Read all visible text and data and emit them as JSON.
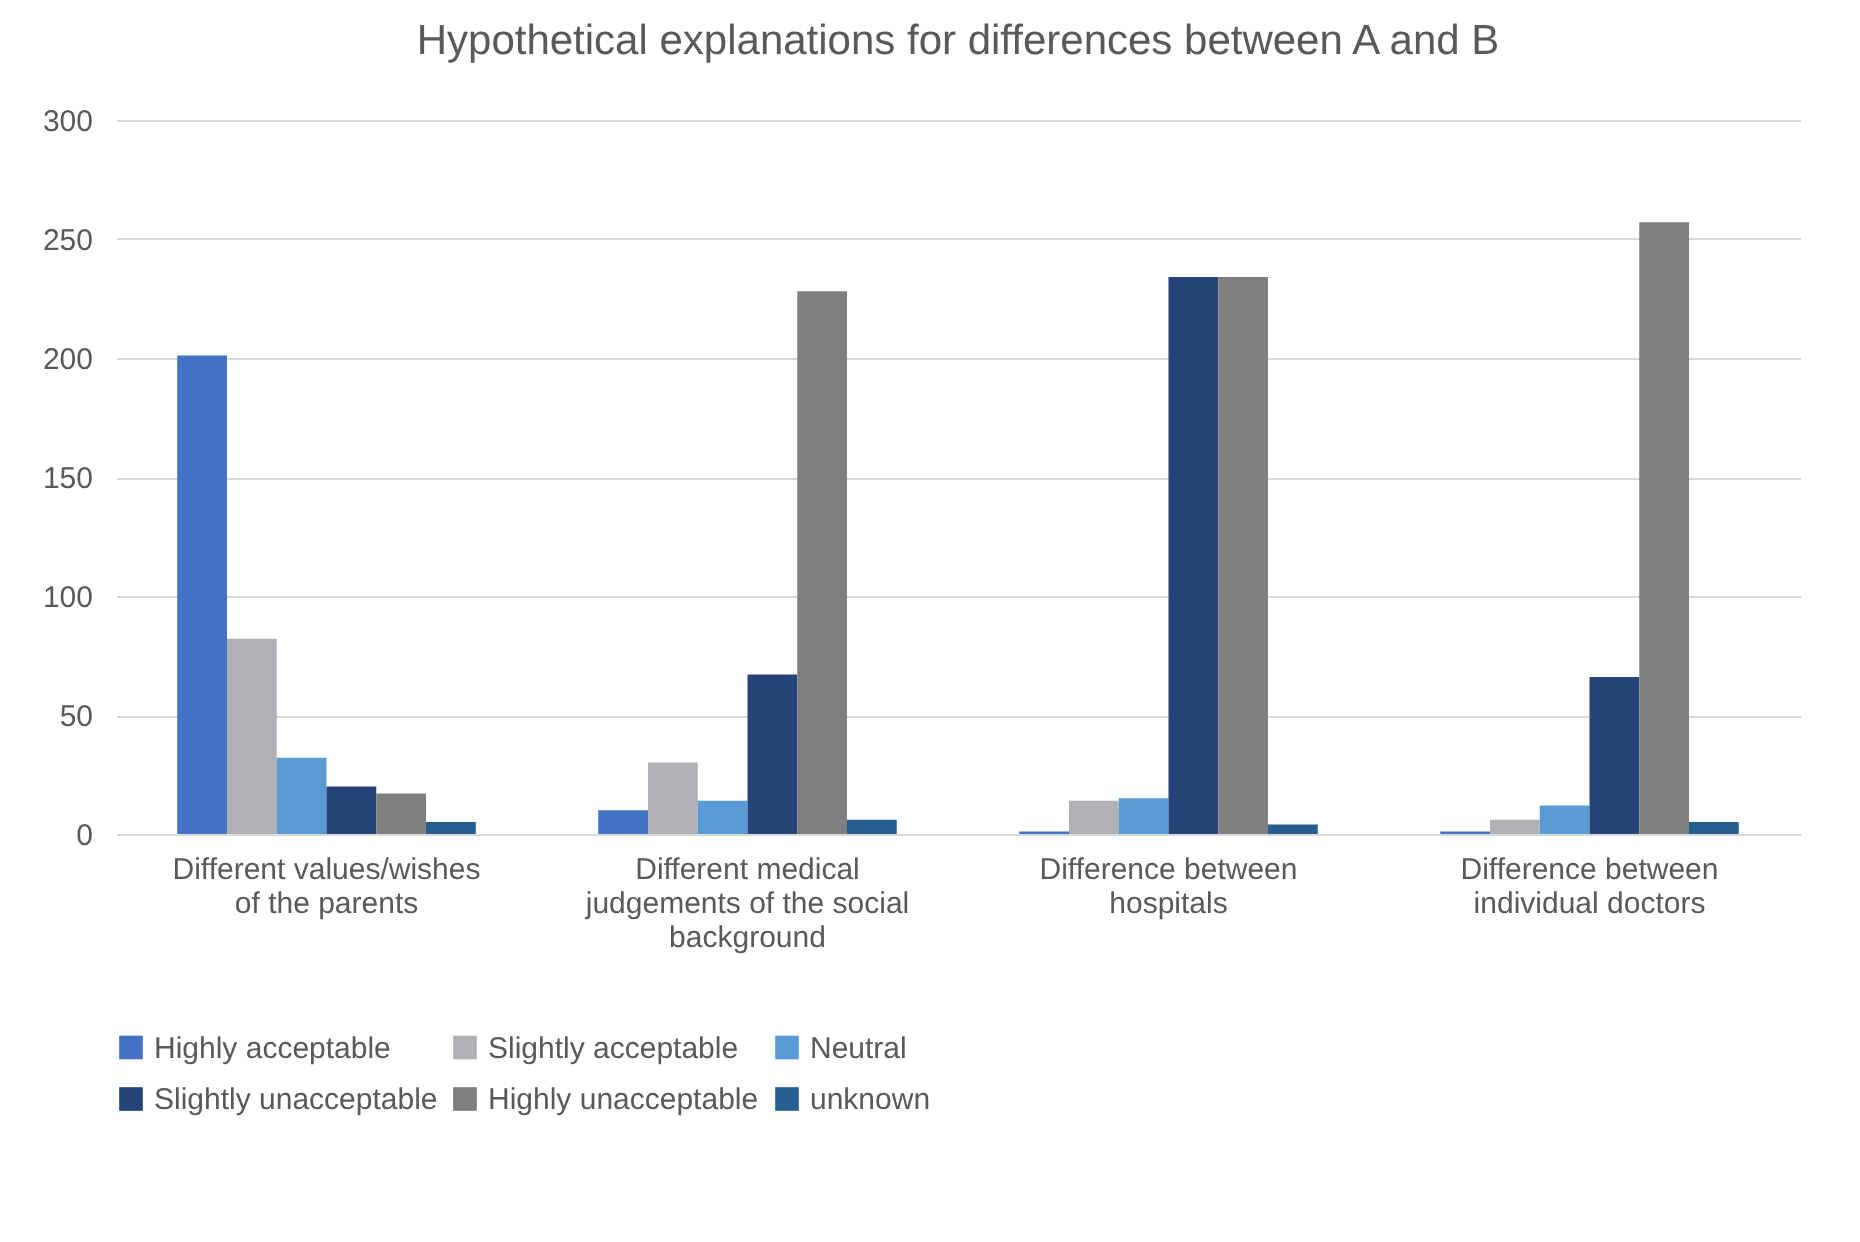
{
  "chart_data": {
    "type": "bar",
    "title": "Hypothetical explanations for differences between A and B",
    "categories": [
      "Different values/wishes of the parents",
      "Different medical judgements of the social background",
      "Difference between hospitals",
      "Difference between individual doctors"
    ],
    "series": [
      {
        "name": "Highly acceptable",
        "color": "#4472c4",
        "values": [
          201,
          10,
          1,
          1
        ]
      },
      {
        "name": "Slightly acceptable",
        "color": "#b0b1b5",
        "values": [
          82,
          30,
          14,
          6
        ]
      },
      {
        "name": "Neutral",
        "color": "#5b9bd5",
        "values": [
          32,
          14,
          15,
          12
        ]
      },
      {
        "name": "Slightly unacceptable",
        "color": "#264478",
        "values": [
          20,
          67,
          234,
          66
        ]
      },
      {
        "name": "Highly unacceptable",
        "color": "#7f7f7f",
        "values": [
          17,
          228,
          234,
          257
        ]
      },
      {
        "name": "unknown",
        "color": "#255e91",
        "values": [
          5,
          6,
          4,
          5
        ]
      }
    ],
    "ylim": [
      0,
      300
    ],
    "yticks": [
      0,
      50,
      100,
      150,
      200,
      250,
      300
    ],
    "grid": "y",
    "legend": "bottom"
  }
}
